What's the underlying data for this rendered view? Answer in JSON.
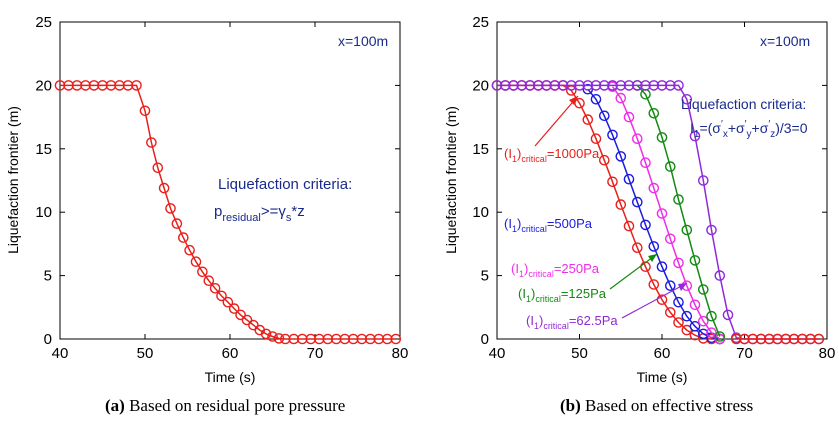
{
  "figure_captions": {
    "a": {
      "tag": "(a)",
      "text": "Based on residual pore pressure"
    },
    "b": {
      "tag": "(b)",
      "text": "Based on effective stress"
    }
  },
  "chart_data": [
    {
      "type": "line",
      "panel": "a",
      "xlabel": "Time  (s)",
      "ylabel": "Liquefaction frontier  (m)",
      "xlim": [
        40,
        80
      ],
      "ylim": [
        0,
        25
      ],
      "xticks": [
        40,
        50,
        60,
        70,
        80
      ],
      "yticks": [
        0,
        5,
        10,
        15,
        20,
        25
      ],
      "grid": false,
      "annotation_location": "x=100m",
      "criteria_title": "Liquefaction criteria:",
      "criteria_formula": {
        "p": "p",
        "p_sub": "residual",
        "rel": ">=",
        "gamma": "γ",
        "gamma_sub": "s",
        "rest": "*z"
      },
      "series": [
        {
          "color": "#e8201c",
          "marker": "circle",
          "x": [
            40,
            41,
            42,
            43,
            44,
            45,
            46,
            47,
            48,
            49,
            50,
            50.75,
            51.5,
            52.25,
            53,
            53.75,
            54.5,
            55.25,
            56,
            56.75,
            57.5,
            58.25,
            59,
            59.75,
            60.5,
            61.25,
            62,
            62.75,
            63.5,
            64.25,
            65,
            65.75,
            66.5,
            67.5,
            68.5,
            69.5,
            70.5,
            71.5,
            72.5,
            73.5,
            74.5,
            75.5,
            76.5,
            77.5,
            78.5,
            79.5
          ],
          "y": [
            20,
            20,
            20,
            20,
            20,
            20,
            20,
            20,
            20,
            20,
            18,
            15.5,
            13.5,
            11.9,
            10.3,
            9.1,
            8.0,
            7.0,
            6.1,
            5.3,
            4.6,
            4.0,
            3.4,
            2.9,
            2.4,
            1.9,
            1.5,
            1.1,
            0.7,
            0.4,
            0.2,
            0.05,
            0,
            0,
            0,
            0,
            0,
            0,
            0,
            0,
            0,
            0,
            0,
            0,
            0,
            0
          ]
        }
      ]
    },
    {
      "type": "line",
      "panel": "b",
      "xlabel": "Time  (s)",
      "ylabel": "Liquefaction frontier  (m)",
      "xlim": [
        40,
        80
      ],
      "ylim": [
        0,
        25
      ],
      "xticks": [
        40,
        50,
        60,
        70,
        80
      ],
      "yticks": [
        0,
        5,
        10,
        15,
        20,
        25
      ],
      "grid": false,
      "annotation_location": "x=100m",
      "criteria_title": "Liquefaction criteria:",
      "criteria_formula": {
        "I": "I",
        "I_sub": "1",
        "eq": "=(",
        "sigma": "σ",
        "prime": "′",
        "sx": "x",
        "sy": "y",
        "sz": "z",
        "plus": "+",
        "tail": ")/3=0"
      },
      "series": [
        {
          "label_main": "(I",
          "label_sub1": "1",
          "label_mid": ")",
          "label_sub2": "critical",
          "label_value": "=1000Pa",
          "color": "#e8201c",
          "marker": "circle",
          "x": [
            40,
            41,
            42,
            43,
            44,
            45,
            46,
            47,
            48,
            49,
            50,
            51,
            52,
            53,
            54,
            55,
            56,
            57,
            58,
            59,
            60,
            61,
            62,
            63,
            64,
            65,
            66,
            67
          ],
          "y": [
            20,
            20,
            20,
            20,
            20,
            20,
            20,
            20,
            20,
            19.6,
            18.6,
            17.3,
            15.8,
            14.1,
            12.4,
            10.6,
            8.9,
            7.2,
            5.7,
            4.3,
            3.1,
            2.1,
            1.3,
            0.7,
            0.3,
            0.05,
            0,
            0
          ]
        },
        {
          "label_main": "(I",
          "label_sub1": "1",
          "label_mid": ")",
          "label_sub2": "critical",
          "label_value": "=500Pa",
          "color": "#1b1be0",
          "marker": "circle",
          "x": [
            51,
            52,
            53,
            54,
            55,
            56,
            57,
            58,
            59,
            60,
            61,
            62,
            63,
            64,
            65,
            66,
            67
          ],
          "y": [
            19.7,
            18.9,
            17.6,
            16.1,
            14.4,
            12.6,
            10.8,
            9.0,
            7.3,
            5.7,
            4.2,
            2.9,
            1.8,
            1.0,
            0.4,
            0.1,
            0
          ]
        },
        {
          "label_main": "(I",
          "label_sub1": "1",
          "label_mid": ")",
          "label_sub2": "critical",
          "label_value": "=250Pa",
          "color": "#ee2ee8",
          "marker": "circle",
          "x": [
            54,
            55,
            56,
            57,
            58,
            59,
            60,
            61,
            62,
            63,
            64,
            65,
            66,
            67
          ],
          "y": [
            19.9,
            19.0,
            17.5,
            15.8,
            13.9,
            11.9,
            9.9,
            7.9,
            6.0,
            4.2,
            2.7,
            1.4,
            0.5,
            0
          ]
        },
        {
          "label_main": "(I",
          "label_sub1": "1",
          "label_mid": ")",
          "label_sub2": "critical",
          "label_value": "=125Pa",
          "color": "#128a12",
          "marker": "circle",
          "x": [
            57,
            58,
            59,
            60,
            61,
            62,
            63,
            64,
            65,
            66,
            67
          ],
          "y": [
            20,
            19.3,
            17.8,
            15.9,
            13.6,
            11.0,
            8.6,
            6.2,
            3.9,
            1.8,
            0.2
          ]
        },
        {
          "label_main": "(I",
          "label_sub1": "1",
          "label_mid": ")",
          "label_sub2": "critical",
          "label_value": "=62.5Pa",
          "color": "#8e2ad8",
          "marker": "circle",
          "x": [
            40,
            41,
            42,
            43,
            44,
            45,
            46,
            47,
            48,
            49,
            50,
            51,
            52,
            53,
            54,
            55,
            56,
            57,
            58,
            59,
            60,
            61,
            62,
            63,
            64,
            65,
            66,
            67,
            68,
            69,
            70,
            71,
            72,
            73,
            74,
            75,
            76,
            77,
            78,
            79
          ],
          "y": [
            20,
            20,
            20,
            20,
            20,
            20,
            20,
            20,
            20,
            20,
            20,
            20,
            20,
            20,
            20,
            20,
            20,
            20,
            20,
            20,
            20,
            20,
            20,
            18.9,
            16.0,
            12.5,
            8.6,
            5.0,
            1.9,
            0.1,
            0,
            0,
            0,
            0,
            0,
            0,
            0,
            0,
            0,
            0
          ]
        },
        {
          "color": "#e8201c",
          "marker": "circle",
          "x": [
            69,
            70,
            71,
            72,
            73,
            74,
            75,
            76,
            77,
            78,
            79
          ],
          "y": [
            0,
            0,
            0,
            0,
            0,
            0,
            0,
            0,
            0,
            0,
            0
          ]
        }
      ]
    }
  ]
}
